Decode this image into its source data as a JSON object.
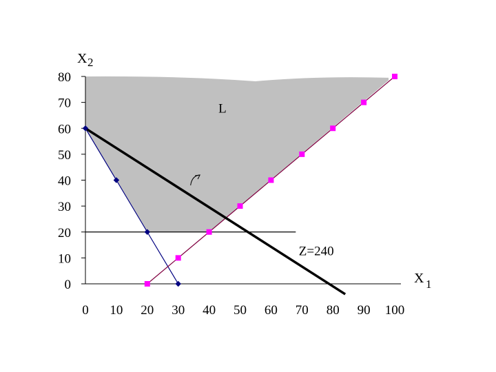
{
  "chart_data": {
    "type": "line",
    "title": "",
    "x_axis": {
      "label_main": "X",
      "label_sub": "1",
      "range": [
        0,
        100
      ],
      "ticks": [
        0,
        10,
        20,
        30,
        40,
        50,
        60,
        70,
        80,
        90,
        100
      ]
    },
    "y_axis": {
      "label_main": "X",
      "label_sub": "2",
      "range": [
        0,
        80
      ],
      "ticks": [
        0,
        10,
        20,
        30,
        40,
        50,
        60,
        70,
        80
      ]
    },
    "feasible_region": {
      "label": "L",
      "color": "#c0c0c0",
      "vertices": [
        [
          0,
          80
        ],
        [
          0,
          60
        ],
        [
          20,
          20
        ],
        [
          40,
          20
        ],
        [
          98,
          78.5
        ],
        [
          98,
          79.5
        ]
      ]
    },
    "series": [
      {
        "color": "#000080",
        "style": "thin",
        "points": [
          [
            0,
            60
          ],
          [
            10,
            40
          ],
          [
            20,
            20
          ],
          [
            30,
            0
          ]
        ]
      },
      {
        "color": "#800040",
        "marker_color": "#ff00ff",
        "style": "thin",
        "points": [
          [
            20,
            0
          ],
          [
            30,
            10
          ],
          [
            40,
            20
          ],
          [
            50,
            30
          ],
          [
            60,
            40
          ],
          [
            70,
            50
          ],
          [
            80,
            60
          ],
          [
            90,
            70
          ],
          [
            100,
            80
          ]
        ]
      },
      {
        "color": "#000000",
        "style": "thin",
        "points": [
          [
            0,
            20
          ],
          [
            68,
            20
          ]
        ]
      },
      {
        "color": "#000000",
        "style": "thick",
        "points": [
          [
            0,
            60
          ],
          [
            84,
            -4
          ]
        ]
      }
    ],
    "annotations": [
      {
        "text": "Z=240",
        "x": 69,
        "y": 11
      },
      {
        "text": "L",
        "x": 43,
        "y": 66
      }
    ],
    "arrow": {
      "from": [
        34,
        38
      ],
      "to": [
        37,
        42
      ]
    },
    "grid": false,
    "legend": "none"
  }
}
